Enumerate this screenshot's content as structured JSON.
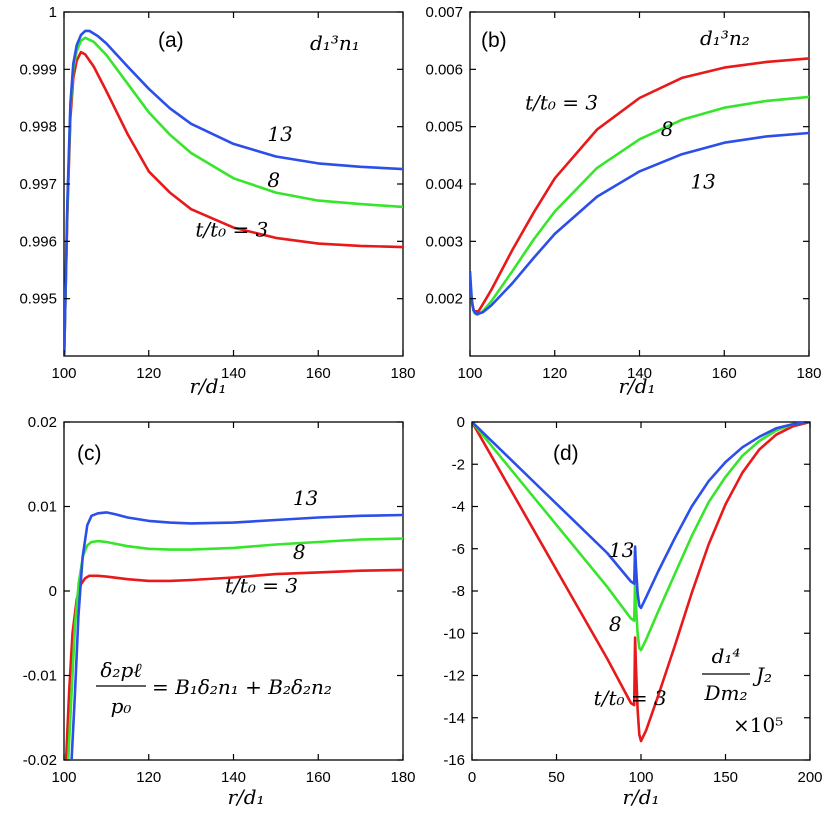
{
  "colors": {
    "t3": "#e8191b",
    "t8": "#37e52b",
    "t13": "#2b4fe8"
  },
  "chart_data": [
    {
      "id": "a",
      "type": "line",
      "panel_label": "(a)",
      "quantity": "d₁³n₁",
      "xlabel": "r/d₁",
      "xlim": [
        100,
        180
      ],
      "ylim": [
        0.994,
        1.0
      ],
      "xticks": [
        100,
        120,
        140,
        160,
        180
      ],
      "yticks": [
        0.995,
        0.996,
        0.997,
        0.998,
        0.999,
        1
      ],
      "ytick_labels": [
        "0.995",
        "0.996",
        "0.997",
        "0.998",
        "0.999",
        "1"
      ],
      "annotations": [
        {
          "text": "13",
          "at": [
            148,
            0.99775
          ]
        },
        {
          "text": "8",
          "at": [
            148,
            0.99695
          ]
        },
        {
          "text": "t/t₀ = 3",
          "at": [
            131,
            0.99608
          ]
        }
      ],
      "series": [
        {
          "name": "t/t0 = 3",
          "color_key": "t3",
          "x": [
            100,
            100.8,
            101.5,
            102.2,
            103,
            104,
            105,
            107,
            110,
            115,
            120,
            125,
            130,
            140,
            150,
            160,
            170,
            180
          ],
          "y": [
            0.99385,
            0.9965,
            0.99815,
            0.99885,
            0.99915,
            0.9993,
            0.99926,
            0.99905,
            0.99862,
            0.99787,
            0.99722,
            0.99685,
            0.99656,
            0.99624,
            0.99606,
            0.99596,
            0.99592,
            0.9959
          ]
        },
        {
          "name": "t/t0 = 8",
          "color_key": "t8",
          "x": [
            100,
            100.8,
            101.5,
            102.2,
            103,
            104,
            105,
            107,
            110,
            115,
            120,
            125,
            130,
            140,
            150,
            160,
            170,
            180
          ],
          "y": [
            0.99385,
            0.9966,
            0.9983,
            0.999,
            0.99932,
            0.9995,
            0.99955,
            0.99948,
            0.99925,
            0.99875,
            0.99825,
            0.99786,
            0.99754,
            0.9971,
            0.99685,
            0.99671,
            0.99665,
            0.9966
          ]
        },
        {
          "name": "t/t0 = 13",
          "color_key": "t13",
          "x": [
            100,
            100.8,
            101.5,
            102.2,
            103,
            104,
            105,
            106,
            108,
            110,
            115,
            120,
            125,
            130,
            140,
            150,
            160,
            170,
            180
          ],
          "y": [
            0.99385,
            0.9967,
            0.9984,
            0.9991,
            0.99942,
            0.9996,
            0.99967,
            0.99967,
            0.99958,
            0.99945,
            0.99905,
            0.99866,
            0.99832,
            0.99805,
            0.9977,
            0.99748,
            0.99736,
            0.9973,
            0.99726
          ]
        }
      ]
    },
    {
      "id": "b",
      "type": "line",
      "panel_label": "(b)",
      "quantity": "d₁³n₂",
      "xlabel": "r/d₁",
      "xlim": [
        100,
        180
      ],
      "ylim": [
        0.001,
        0.007
      ],
      "xticks": [
        100,
        120,
        140,
        160,
        180
      ],
      "yticks": [
        0.002,
        0.003,
        0.004,
        0.005,
        0.006,
        0.007
      ],
      "ytick_labels": [
        "0.002",
        "0.003",
        "0.004",
        "0.005",
        "0.006",
        "0.007"
      ],
      "annotations": [
        {
          "text": "t/t₀ = 3",
          "at": [
            113,
            0.0053
          ]
        },
        {
          "text": "8",
          "at": [
            145,
            0.00484
          ]
        },
        {
          "text": "13",
          "at": [
            152,
            0.00392
          ]
        }
      ],
      "series": [
        {
          "name": "t/t0 = 3",
          "color_key": "t3",
          "x": [
            100,
            100.5,
            101,
            102,
            103,
            105,
            110,
            115,
            120,
            130,
            140,
            150,
            160,
            170,
            180
          ],
          "y": [
            0.00225,
            0.0019,
            0.00178,
            0.00178,
            0.0019,
            0.00215,
            0.00285,
            0.0035,
            0.0041,
            0.00495,
            0.0055,
            0.00585,
            0.00603,
            0.00613,
            0.00619
          ]
        },
        {
          "name": "t/t0 = 8",
          "color_key": "t8",
          "x": [
            100,
            100.5,
            101,
            101.8,
            103,
            105,
            110,
            115,
            120,
            130,
            140,
            150,
            160,
            170,
            180
          ],
          "y": [
            0.00235,
            0.0019,
            0.00175,
            0.00172,
            0.00178,
            0.00195,
            0.00248,
            0.00303,
            0.00352,
            0.00428,
            0.00478,
            0.00512,
            0.00533,
            0.00545,
            0.00552
          ]
        },
        {
          "name": "t/t0 = 13",
          "color_key": "t13",
          "x": [
            100,
            100.4,
            100.8,
            101.5,
            103,
            105,
            110,
            115,
            120,
            130,
            140,
            150,
            160,
            170,
            180
          ],
          "y": [
            0.00248,
            0.002,
            0.0018,
            0.00173,
            0.00176,
            0.00188,
            0.00227,
            0.00271,
            0.00313,
            0.00378,
            0.00422,
            0.00452,
            0.00472,
            0.00483,
            0.00489
          ]
        }
      ]
    },
    {
      "id": "c",
      "type": "line",
      "panel_label": "(c)",
      "xlabel": "r/d₁",
      "xlim": [
        100,
        180
      ],
      "ylim": [
        -0.02,
        0.02
      ],
      "xticks": [
        100,
        120,
        140,
        160,
        180
      ],
      "yticks": [
        -0.02,
        -0.01,
        0,
        0.01,
        0.02
      ],
      "ytick_labels": [
        "-0.02",
        "-0.01",
        "0",
        "0.01",
        "0.02"
      ],
      "equation": {
        "lhs_numerator": "δ₂pℓ",
        "lhs_denominator": "p₀",
        "rhs": "= B₁δ₂n₁ + B₂δ₂n₂"
      },
      "annotations": [
        {
          "text": "13",
          "at": [
            154,
            0.0102
          ]
        },
        {
          "text": "8",
          "at": [
            154,
            0.0038
          ]
        },
        {
          "text": "t/t₀ = 3",
          "at": [
            138,
            -0.0002
          ]
        }
      ],
      "series": [
        {
          "name": "t/t0 = 3",
          "color_key": "t3",
          "x": [
            100.5,
            101.2,
            102,
            103,
            104,
            105,
            106,
            108,
            110,
            115,
            120,
            125,
            130,
            140,
            150,
            160,
            170,
            180
          ],
          "y": [
            -0.02,
            -0.012,
            -0.005,
            -0.001,
            0.0008,
            0.0015,
            0.0018,
            0.0018,
            0.0017,
            0.0014,
            0.0012,
            0.0012,
            0.0013,
            0.0016,
            0.002,
            0.0022,
            0.0024,
            0.0025
          ]
        },
        {
          "name": "t/t0 = 8",
          "color_key": "t8",
          "x": [
            101,
            101.8,
            102.6,
            103.5,
            104.5,
            105.5,
            106.5,
            108,
            110,
            115,
            120,
            125,
            130,
            140,
            150,
            160,
            170,
            180
          ],
          "y": [
            -0.02,
            -0.012,
            -0.004,
            0.001,
            0.0042,
            0.0054,
            0.0058,
            0.0059,
            0.0058,
            0.0053,
            0.005,
            0.0049,
            0.0049,
            0.0051,
            0.0055,
            0.0058,
            0.0061,
            0.0062
          ]
        },
        {
          "name": "t/t0 = 13",
          "color_key": "t13",
          "x": [
            101.8,
            102.6,
            103.4,
            104.4,
            105.5,
            106.5,
            108,
            110,
            112,
            115,
            120,
            125,
            130,
            140,
            150,
            160,
            170,
            180
          ],
          "y": [
            -0.02,
            -0.012,
            -0.003,
            0.004,
            0.0078,
            0.0089,
            0.0092,
            0.0093,
            0.0091,
            0.0087,
            0.0083,
            0.0081,
            0.008,
            0.0081,
            0.0084,
            0.0087,
            0.0089,
            0.009
          ]
        }
      ]
    },
    {
      "id": "d",
      "type": "line",
      "panel_label": "(d)",
      "xlabel": "r/d₁",
      "xlim": [
        0,
        200
      ],
      "ylim": [
        -16,
        0
      ],
      "xticks": [
        0,
        50,
        100,
        150,
        200
      ],
      "yticks": [
        -16,
        -14,
        -12,
        -10,
        -8,
        -6,
        -4,
        -2,
        0
      ],
      "ytick_labels": [
        "-16",
        "-14",
        "-12",
        "-10",
        "-8",
        "-6",
        "-4",
        "-2",
        "0"
      ],
      "quantity": {
        "numerator": "d₁⁴",
        "denominator": "Dm₂",
        "symbol": "J₂",
        "scale": "×10⁵"
      },
      "annotations": [
        {
          "text": "13",
          "at": [
            81,
            -6.4
          ]
        },
        {
          "text": "8",
          "at": [
            81,
            -9.9
          ]
        },
        {
          "text": "t/t₀ = 3",
          "at": [
            72,
            -13.4
          ]
        }
      ],
      "series": [
        {
          "name": "t/t0 = 3",
          "color_key": "t3",
          "x": [
            0,
            20,
            40,
            60,
            80,
            94,
            96,
            96.5,
            97,
            98,
            99,
            100,
            103,
            110,
            120,
            130,
            140,
            150,
            160,
            170,
            180,
            190,
            200
          ],
          "y": [
            0,
            -2.8,
            -5.6,
            -8.4,
            -11.2,
            -13.3,
            -13.4,
            -10.2,
            -11.5,
            -13.6,
            -14.8,
            -15.1,
            -14.6,
            -13.0,
            -10.6,
            -8.1,
            -5.8,
            -3.9,
            -2.4,
            -1.3,
            -0.6,
            -0.2,
            0
          ]
        },
        {
          "name": "t/t0 = 8",
          "color_key": "t8",
          "x": [
            0,
            20,
            40,
            60,
            80,
            94,
            96,
            96.5,
            97,
            98,
            99,
            100,
            103,
            110,
            120,
            130,
            140,
            150,
            160,
            170,
            180,
            190,
            200
          ],
          "y": [
            0,
            -1.95,
            -3.9,
            -5.85,
            -7.8,
            -9.3,
            -9.4,
            -7.5,
            -8.6,
            -10.0,
            -10.7,
            -10.8,
            -10.3,
            -9.0,
            -7.2,
            -5.4,
            -3.8,
            -2.6,
            -1.6,
            -0.9,
            -0.4,
            -0.1,
            0
          ]
        },
        {
          "name": "t/t0 = 13",
          "color_key": "t13",
          "x": [
            0,
            20,
            40,
            60,
            80,
            94,
            96,
            96.5,
            97,
            98,
            99,
            100,
            103,
            110,
            120,
            130,
            140,
            150,
            160,
            170,
            180,
            190,
            200
          ],
          "y": [
            0,
            -1.55,
            -3.1,
            -4.65,
            -6.2,
            -7.55,
            -7.65,
            -5.9,
            -6.8,
            -8.1,
            -8.7,
            -8.8,
            -8.3,
            -7.1,
            -5.5,
            -4.0,
            -2.8,
            -1.9,
            -1.2,
            -0.7,
            -0.3,
            -0.1,
            0
          ]
        }
      ]
    }
  ]
}
